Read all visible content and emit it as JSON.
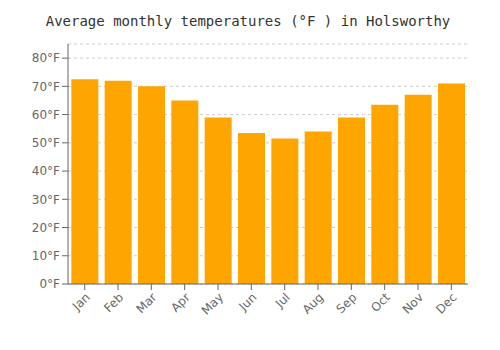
{
  "chart_data": {
    "type": "bar",
    "title": "Average monthly temperatures (°F ) in Holsworthy",
    "categories": [
      "Jan",
      "Feb",
      "Mar",
      "Apr",
      "May",
      "Jun",
      "Jul",
      "Aug",
      "Sep",
      "Oct",
      "Nov",
      "Dec"
    ],
    "values": [
      72.5,
      72.0,
      70.0,
      65.0,
      59.0,
      53.5,
      51.5,
      54.0,
      59.0,
      63.5,
      67.0,
      71.0
    ],
    "color": "#FFA500",
    "ylim": [
      0,
      85
    ],
    "yticks": [
      {
        "value": 0,
        "label": "0°F"
      },
      {
        "value": 10,
        "label": "10°F"
      },
      {
        "value": 20,
        "label": "20°F"
      },
      {
        "value": 30,
        "label": "30°F"
      },
      {
        "value": 40,
        "label": "40°F"
      },
      {
        "value": 50,
        "label": "50°F"
      },
      {
        "value": 60,
        "label": "60°F"
      },
      {
        "value": 70,
        "label": "70°F"
      },
      {
        "value": 80,
        "label": "80°F"
      }
    ],
    "grid": true
  }
}
